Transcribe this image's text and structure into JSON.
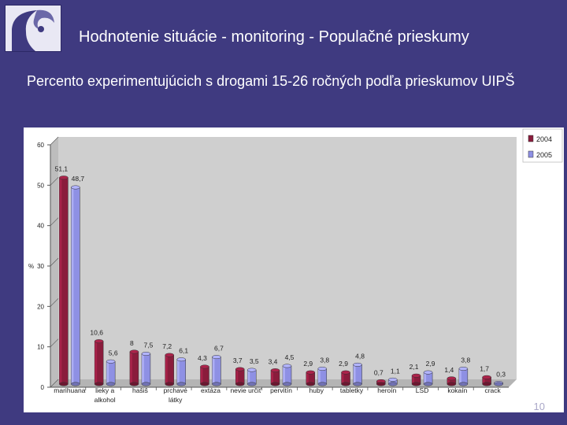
{
  "header": {
    "title": "Hodnotenie situácie - monitoring - Populačné prieskumy",
    "subtitle": "Percento experimentujúcich s drogami 15-26 ročných podľa prieskumov UIPŠ"
  },
  "footer": {
    "page_number": "10"
  },
  "colors": {
    "background": "#3f3a80",
    "series_2004": "#8a1c3c",
    "series_2005": "#8e90e4",
    "plot_area": "#cfcfcf"
  },
  "chart_data": {
    "type": "bar",
    "title": "",
    "xlabel": "",
    "ylabel": "%",
    "ylim": [
      0,
      60
    ],
    "yticks": [
      0,
      10,
      20,
      30,
      40,
      50,
      60
    ],
    "categories": [
      [
        "marihuana"
      ],
      [
        "lieky a",
        "alkohol"
      ],
      [
        "hašiš"
      ],
      [
        "prchavé",
        "látky"
      ],
      [
        "extáza"
      ],
      [
        "nevie určiť"
      ],
      [
        "pervitín"
      ],
      [
        "huby"
      ],
      [
        "tabletky"
      ],
      [
        "heroín"
      ],
      [
        "LSD"
      ],
      [
        "kokaín"
      ],
      [
        "crack"
      ]
    ],
    "series": [
      {
        "name": "2004",
        "values": [
          51.1,
          10.6,
          8,
          7.2,
          4.3,
          3.7,
          3.4,
          2.9,
          2.9,
          0.7,
          2.1,
          1.4,
          1.7
        ],
        "labels": [
          "51,1",
          "10,6",
          "8",
          "7,2",
          "4,3",
          "3,7",
          "3,4",
          "2,9",
          "2,9",
          "0,7",
          "2,1",
          "1,4",
          "1,7"
        ]
      },
      {
        "name": "2005",
        "values": [
          48.7,
          5.6,
          7.5,
          6.1,
          6.7,
          3.5,
          4.5,
          3.8,
          4.8,
          1.1,
          2.9,
          3.8,
          0.3
        ],
        "labels": [
          "48,7",
          "5,6",
          "7,5",
          "6,1",
          "6,7",
          "3,5",
          "4,5",
          "3,8",
          "4,8",
          "1,1",
          "2,9",
          "3,8",
          "0,3"
        ]
      }
    ],
    "legend_position": "right"
  }
}
